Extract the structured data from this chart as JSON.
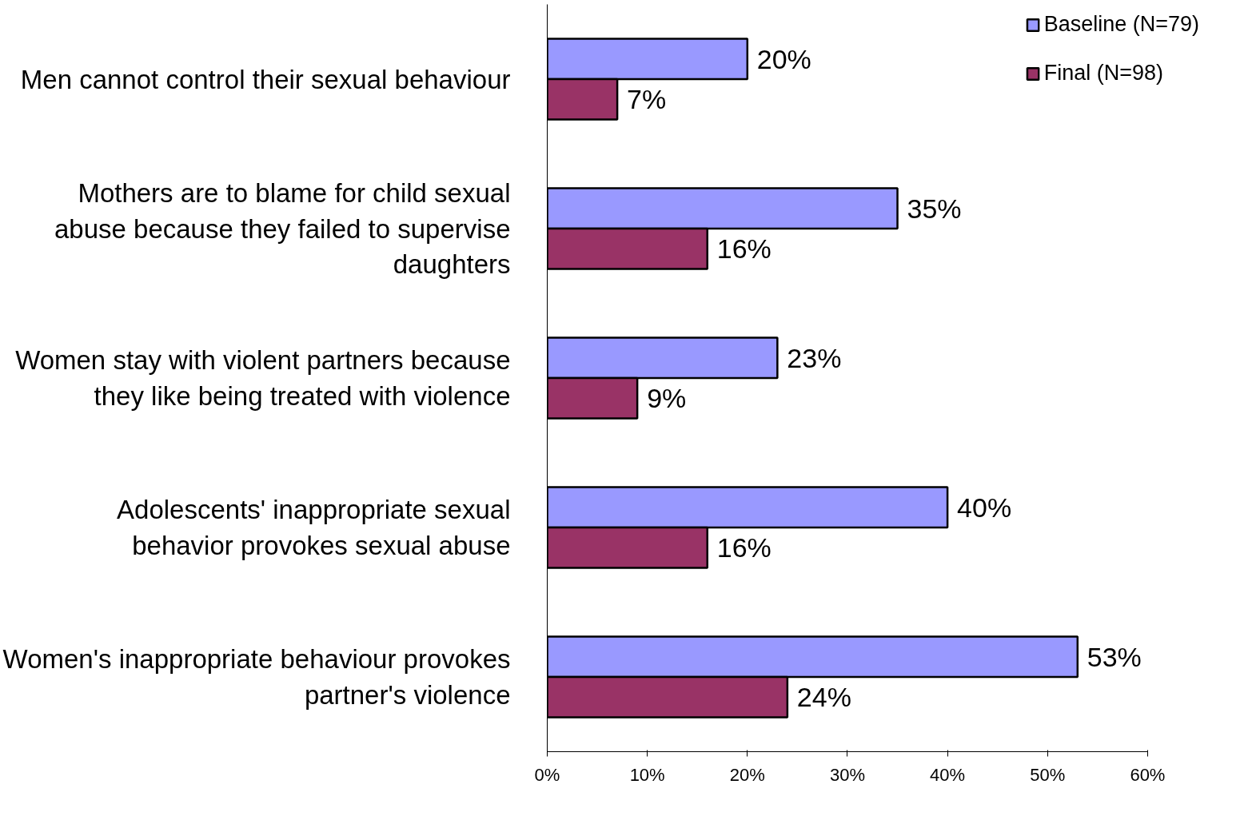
{
  "chart_data": {
    "type": "bar",
    "orientation": "horizontal",
    "categories": [
      "Men cannot control their sexual behaviour",
      "Mothers are to blame for child sexual abuse because they failed to supervise daughters",
      "Women stay with violent partners because they like being treated with violence",
      "Adolescents' inappropriate sexual behavior provokes sexual abuse",
      "Women's inappropriate behaviour provokes partner's violence"
    ],
    "series": [
      {
        "name": "Baseline (N=79)",
        "color": "#9999ff",
        "values": [
          20,
          35,
          23,
          40,
          53
        ],
        "value_labels": [
          "20%",
          "35%",
          "23%",
          "40%",
          "53%"
        ]
      },
      {
        "name": "Final (N=98)",
        "color": "#993366",
        "values": [
          7,
          16,
          9,
          16,
          24
        ],
        "value_labels": [
          "7%",
          "16%",
          "9%",
          "16%",
          "24%"
        ]
      }
    ],
    "xlim": [
      0,
      60
    ],
    "xticks": [
      {
        "value": 0,
        "label": "0%"
      },
      {
        "value": 10,
        "label": "10%"
      },
      {
        "value": 20,
        "label": "20%"
      },
      {
        "value": 30,
        "label": "30%"
      },
      {
        "value": 40,
        "label": "40%"
      },
      {
        "value": 50,
        "label": "50%"
      },
      {
        "value": 60,
        "label": "60%"
      }
    ],
    "legend": "top right",
    "grid": false
  }
}
